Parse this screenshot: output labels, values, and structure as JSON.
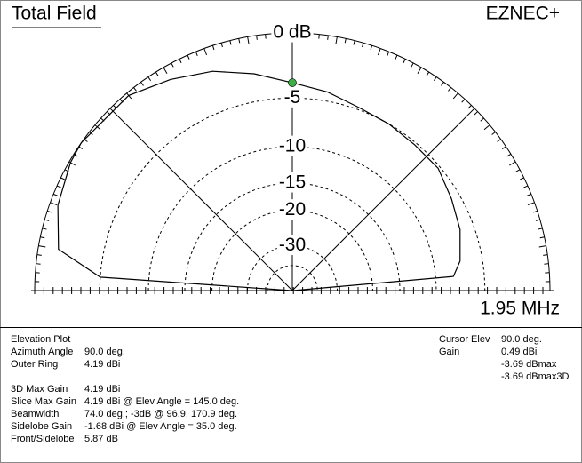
{
  "chart_data": {
    "type": "polar-elevation",
    "title": "Total Field",
    "brand": "EZNEC+",
    "frequency": "1.95 MHz",
    "angles": [
      0,
      5,
      10,
      20,
      30,
      40,
      50,
      60,
      70,
      80,
      90,
      100,
      110,
      120,
      130,
      145,
      150,
      160,
      170,
      176,
      180
    ],
    "values": [
      -99,
      -8.0,
      -7.1,
      -6.3,
      -5.8,
      -5.2,
      -5.2,
      -5.0,
      -4.8,
      -4.2,
      -3.69,
      -2.7,
      -1.7,
      -0.95,
      -0.2,
      0,
      -0.1,
      -0.55,
      -1.4,
      -5.0,
      -99
    ],
    "color": "#000000",
    "cursor": {
      "angle": 90,
      "value": -3.69,
      "color": "#3cb043"
    },
    "rticks": [
      {
        "value": 0,
        "label": "0 dB"
      },
      -5,
      -10,
      -15,
      -20,
      -30
    ],
    "minor_rings": [
      -40
    ],
    "scale": "arrl-log"
  },
  "info": {
    "plot_kind": "Elevation Plot",
    "group1": [
      {
        "label": "Azimuth Angle",
        "value": "90.0 deg."
      },
      {
        "label": "Outer Ring",
        "value": "4.19 dBi"
      }
    ],
    "group2": [
      {
        "label": "3D Max Gain",
        "value": "4.19 dBi"
      },
      {
        "label": "Slice Max Gain",
        "value": "4.19 dBi @ Elev Angle = 145.0 deg."
      },
      {
        "label": "Beamwidth",
        "value": "74.0 deg.; -3dB @ 96.9, 170.9 deg."
      },
      {
        "label": "Sidelobe Gain",
        "value": "-1.68 dBi @ Elev Angle = 35.0 deg."
      },
      {
        "label": "Front/Sidelobe",
        "value": "5.87 dB"
      }
    ],
    "cursor_rows": [
      {
        "label": "Cursor Elev",
        "value": "90.0 deg."
      },
      {
        "label": "Gain",
        "value": "0.49 dBi"
      }
    ],
    "cursor_extra": [
      "-3.69 dBmax",
      "-3.69 dBmax3D"
    ]
  }
}
